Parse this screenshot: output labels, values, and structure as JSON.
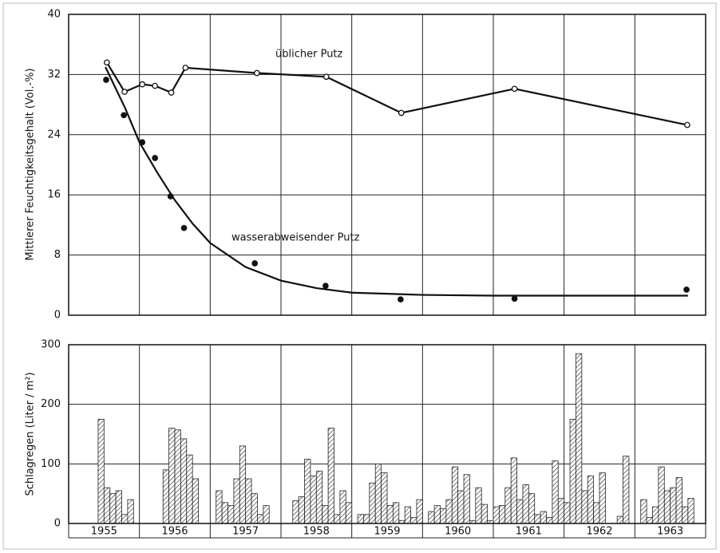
{
  "chart_data": [
    {
      "type": "line",
      "ylabel": "Mittlerer Feuchtigkeitsgehalt (Vol.-%)",
      "xlim": [
        1955,
        1964
      ],
      "xticks": [
        1955,
        1956,
        1957,
        1958,
        1959,
        1960,
        1961,
        1962,
        1963,
        1964
      ],
      "ylim": [
        0,
        40
      ],
      "yticks": [
        0,
        8,
        16,
        24,
        32,
        40
      ],
      "grid": true,
      "series": [
        {
          "name": "üblicher Putz",
          "color": "#111",
          "marker": "open",
          "line": true,
          "x": [
            1955.54,
            1955.79,
            1956.04,
            1956.22,
            1956.45,
            1956.65,
            1957.66,
            1958.64,
            1959.7,
            1961.3,
            1963.74
          ],
          "values": [
            33.6,
            29.7,
            30.7,
            30.5,
            29.6,
            32.9,
            32.2,
            31.7,
            26.9,
            30.1,
            25.3
          ]
        },
        {
          "name": "wasserabweisender Putz",
          "color": "#111",
          "marker": "filled",
          "line": false,
          "x": [
            1955.53,
            1955.78,
            1956.04,
            1956.22,
            1956.44,
            1956.63,
            1957.63,
            1958.63,
            1959.69,
            1961.3,
            1963.73
          ],
          "values": [
            31.3,
            26.6,
            23.0,
            20.9,
            15.8,
            11.6,
            6.9,
            3.9,
            2.1,
            2.2,
            3.4
          ],
          "curve": {
            "x": [
              1955.52,
              1955.8,
              1956.0,
              1956.25,
              1956.5,
              1956.75,
              1957.0,
              1957.5,
              1958.0,
              1958.5,
              1959.0,
              1960.0,
              1961.0,
              1962.0,
              1963.75
            ],
            "values": [
              33.0,
              27.5,
              23.0,
              19.0,
              15.3,
              12.2,
              9.6,
              6.4,
              4.6,
              3.6,
              3.0,
              2.7,
              2.6,
              2.6,
              2.6
            ]
          }
        }
      ]
    },
    {
      "type": "bar",
      "ylabel": "Schlagregen (Liter / m²)",
      "ylim": [
        0,
        300
      ],
      "yticks": [
        0,
        100,
        200,
        300
      ],
      "grid": true,
      "categories": [
        "1955",
        "1956",
        "1957",
        "1958",
        "1959",
        "1960",
        "1961",
        "1962",
        "1963"
      ],
      "values": [
        [
          0,
          0,
          0,
          0,
          0,
          175,
          60,
          50,
          55,
          15,
          40,
          0
        ],
        [
          0,
          0,
          0,
          0,
          90,
          160,
          157,
          142,
          115,
          75,
          0,
          0
        ],
        [
          0,
          55,
          35,
          30,
          75,
          130,
          75,
          50,
          15,
          30,
          0,
          0
        ],
        [
          0,
          0,
          38,
          45,
          108,
          80,
          88,
          30,
          160,
          15,
          55,
          35
        ],
        [
          0,
          15,
          15,
          68,
          100,
          85,
          30,
          35,
          5,
          28,
          10,
          40
        ],
        [
          0,
          20,
          30,
          25,
          40,
          95,
          55,
          82,
          5,
          60,
          32,
          5
        ],
        [
          28,
          30,
          60,
          110,
          40,
          65,
          50,
          15,
          20,
          10,
          105,
          42
        ],
        [
          35,
          175,
          285,
          55,
          80,
          35,
          85,
          0,
          0,
          12,
          113,
          0
        ],
        [
          0,
          40,
          10,
          28,
          95,
          55,
          60,
          77,
          28,
          42,
          0,
          0
        ]
      ]
    }
  ]
}
